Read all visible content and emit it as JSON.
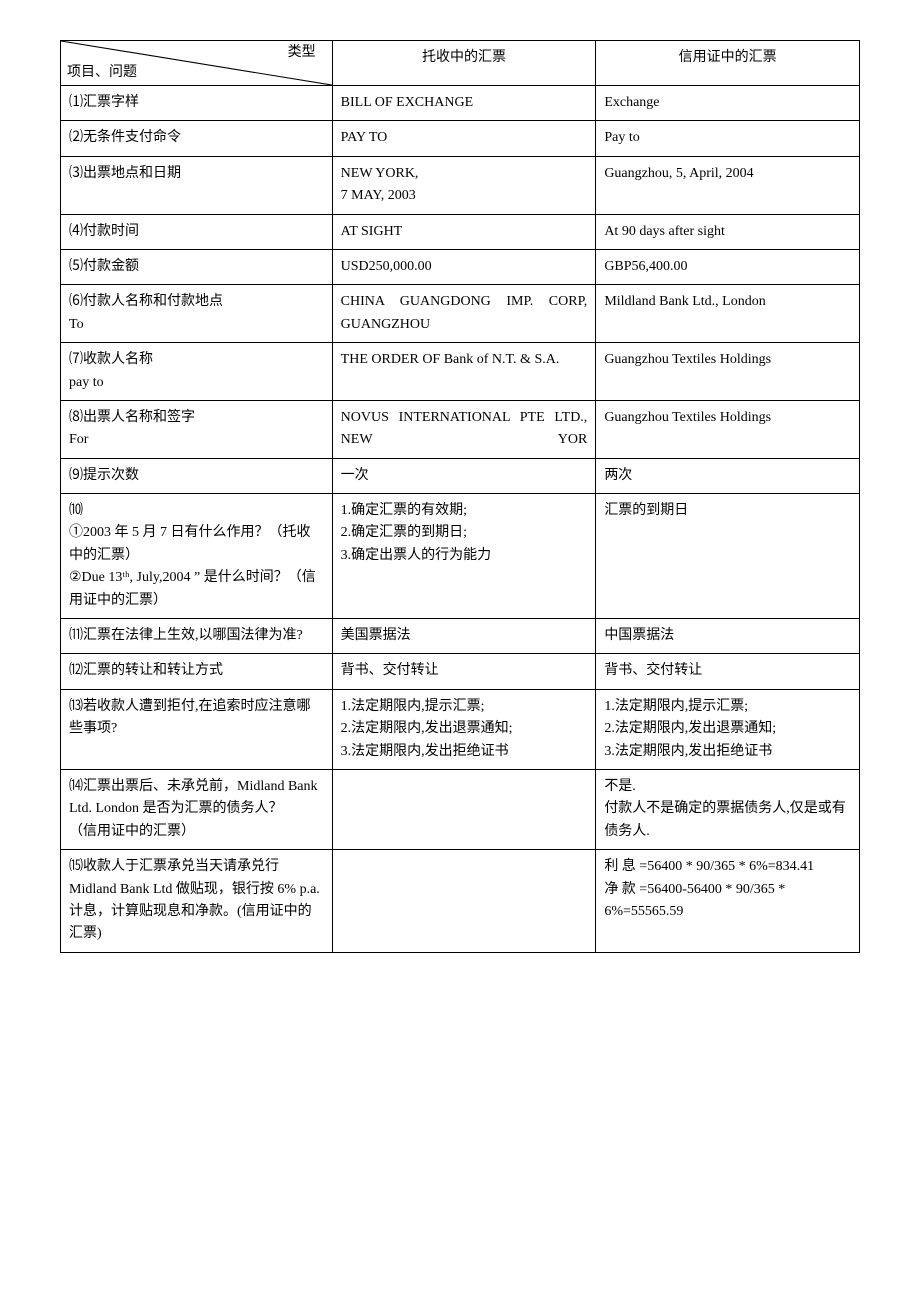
{
  "header": {
    "diag_top": "类型",
    "diag_bottom": "项目、问题",
    "col2": "托收中的汇票",
    "col3": "信用证中的汇票"
  },
  "rows": [
    {
      "c1": "⑴汇票字样",
      "c2": "BILL OF EXCHANGE",
      "c3": "Exchange"
    },
    {
      "c1": "⑵无条件支付命令",
      "c2": "PAY TO",
      "c3": "Pay to"
    },
    {
      "c1": "⑶出票地点和日期",
      "c2": "NEW YORK,\n7 MAY, 2003",
      "c3": "Guangzhou, 5, April, 2004"
    },
    {
      "c1": "⑷付款时间",
      "c2": "AT SIGHT",
      "c3": "At 90 days after sight"
    },
    {
      "c1": "⑸付款金额",
      "c2": "USD250,000.00",
      "c3": "GBP56,400.00"
    },
    {
      "c1": "⑹付款人名称和付款地点\nTo",
      "c2": "CHINA GUANGDONG IMP. CORP, GUANGZHOU",
      "c2_spread": true,
      "c3": "Mildland Bank Ltd., London"
    },
    {
      "c1": "⑺收款人名称\npay to",
      "c2": "THE ORDER OF Bank of N.T. & S.A.",
      "c3": "Guangzhou Textiles Holdings"
    },
    {
      "c1": "⑻出票人名称和签字\nFor",
      "c2": "NOVUS INTERNATIONAL PTE LTD., NEW YOR",
      "c2_spread": true,
      "c3": "Guangzhou Textiles Holdings"
    },
    {
      "c1": "⑼提示次数",
      "c2": "一次",
      "c3": "两次"
    },
    {
      "c1": "⑽\n①2003 年 5 月 7 日有什么作用？（托收中的汇票）\n②Due 13ᵗʰ, July,2004 ” 是什么时间？（信用证中的汇票）",
      "c2": "1.确定汇票的有效期;\n2.确定汇票的到期日;\n3.确定出票人的行为能力",
      "c3": "汇票的到期日"
    },
    {
      "c1": "⑾汇票在法律上生效,以哪国法律为准?",
      "c2": "美国票据法",
      "c3": "中国票据法"
    },
    {
      "c1": "⑿汇票的转让和转让方式",
      "c2": "背书、交付转让",
      "c3": "背书、交付转让"
    },
    {
      "c1": "⒀若收款人遭到拒付,在追索时应注意哪些事项?",
      "c2": "1.法定期限内,提示汇票;\n2.法定期限内,发出退票通知;\n3.法定期限内,发出拒绝证书",
      "c3": "1.法定期限内,提示汇票;\n2.法定期限内,发出退票通知;\n3.法定期限内,发出拒绝证书"
    },
    {
      "c1": "⒁汇票出票后、未承兑前，Midland Bank Ltd. London 是否为汇票的债务人？\n（信用证中的汇票）",
      "c2": "",
      "c3": "不是.\n付款人不是确定的票据债务人,仅是或有债务人."
    },
    {
      "c1": "⒂收款人于汇票承兑当天请承兑行 Midland Bank Ltd 做贴现，银行按 6% p.a.计息，计算贴现息和净款。(信用证中的汇票)",
      "c2": "",
      "c3": "利 息 =56400 * 90/365 * 6%=834.41\n净 款 =56400-56400 * 90/365 * 6%=55565.59"
    }
  ]
}
